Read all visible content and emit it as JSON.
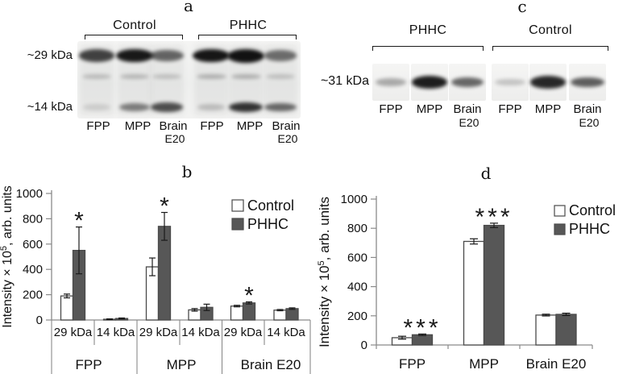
{
  "colors": {
    "control_fill": "#ffffff",
    "phhc_fill": "#575757",
    "bar_stroke": "#4a4a4a",
    "axis": "#8a8a8a",
    "text": "#111111",
    "band": "#121212"
  },
  "blot_a": {
    "letter": "a",
    "groups": [
      {
        "label": "Control"
      },
      {
        "label": "PHHC"
      }
    ],
    "markers": [
      "~29 kDa",
      "~14 kDa"
    ],
    "lanes": [
      {
        "label": "FPP",
        "sub": "",
        "bands": [
          0.78,
          0.2,
          0.12
        ]
      },
      {
        "label": "MPP",
        "sub": "",
        "bands": [
          0.97,
          0.22,
          0.5
        ]
      },
      {
        "label": "Brain",
        "sub": "E20",
        "bands": [
          0.62,
          0.18,
          0.72
        ]
      },
      {
        "label": "FPP",
        "sub": "",
        "bands": [
          0.98,
          0.25,
          0.2
        ]
      },
      {
        "label": "MPP",
        "sub": "",
        "bands": [
          1.0,
          0.25,
          0.85
        ]
      },
      {
        "label": "Brain",
        "sub": "E20",
        "bands": [
          0.58,
          0.18,
          0.6
        ]
      }
    ]
  },
  "blot_c": {
    "letter": "c",
    "groups": [
      {
        "label": "PHHC"
      },
      {
        "label": "Control"
      }
    ],
    "markers": [
      "~31 kDa"
    ],
    "lanes": [
      {
        "label": "FPP",
        "sub": "",
        "bands": [
          0.32
        ]
      },
      {
        "label": "MPP",
        "sub": "",
        "bands": [
          0.95
        ]
      },
      {
        "label": "Brain",
        "sub": "E20",
        "bands": [
          0.62
        ]
      },
      {
        "label": "FPP",
        "sub": "",
        "bands": [
          0.2
        ]
      },
      {
        "label": "MPP",
        "sub": "",
        "bands": [
          0.9
        ]
      },
      {
        "label": "Brain",
        "sub": "E20",
        "bands": [
          0.66
        ]
      }
    ]
  },
  "chart_data": [
    {
      "panel": "b",
      "letter": "b",
      "type": "bar",
      "ylabel_text": "Intensity × 10⁵, arb. units",
      "ylabel": {
        "pre": "Intensity × 10",
        "sup": "5",
        "post": ", arb. units"
      },
      "ylim": [
        0,
        1000
      ],
      "yticks": [
        0,
        200,
        400,
        600,
        800,
        1000
      ],
      "legend": [
        "Control",
        "PHHC"
      ],
      "grid": false,
      "legend_position": "upper-right",
      "groups": [
        {
          "label": "FPP",
          "bars": [
            {
              "sub": "29 kDa",
              "control": 190,
              "control_err": 15,
              "phhc": 550,
              "phhc_err": 185,
              "sig": "*"
            },
            {
              "sub": "14 kDa",
              "control": 6,
              "control_err": 3,
              "phhc": 12,
              "phhc_err": 4,
              "sig": ""
            }
          ]
        },
        {
          "label": "MPP",
          "bars": [
            {
              "sub": "29 kDa",
              "control": 420,
              "control_err": 70,
              "phhc": 740,
              "phhc_err": 110,
              "sig": "*"
            },
            {
              "sub": "14 kDa",
              "control": 80,
              "control_err": 10,
              "phhc": 100,
              "phhc_err": 25,
              "sig": ""
            }
          ]
        },
        {
          "label": "Brain E20",
          "bars": [
            {
              "sub": "29 kDa",
              "control": 110,
              "control_err": 6,
              "phhc": 135,
              "phhc_err": 8,
              "sig": "*"
            },
            {
              "sub": "14 kDa",
              "control": 78,
              "control_err": 5,
              "phhc": 90,
              "phhc_err": 6,
              "sig": ""
            }
          ]
        }
      ]
    },
    {
      "panel": "d",
      "letter": "d",
      "type": "bar",
      "ylabel_text": "Intensity × 10⁵, arb. units",
      "ylabel": {
        "pre": "Intensity × 10",
        "sup": "5",
        "post": ", arb. units"
      },
      "ylim": [
        0,
        1000
      ],
      "yticks": [
        0,
        200,
        400,
        600,
        800,
        1000
      ],
      "legend": [
        "Control",
        "PHHC"
      ],
      "grid": false,
      "legend_position": "upper-right",
      "groups": [
        {
          "label": "FPP",
          "bars": [
            {
              "sub": "",
              "control": 50,
              "control_err": 10,
              "phhc": 70,
              "phhc_err": 5,
              "sig": "***"
            }
          ]
        },
        {
          "label": "MPP",
          "bars": [
            {
              "sub": "",
              "control": 710,
              "control_err": 18,
              "phhc": 820,
              "phhc_err": 15,
              "sig": "***"
            }
          ]
        },
        {
          "label": "Brain E20",
          "bars": [
            {
              "sub": "",
              "control": 205,
              "control_err": 6,
              "phhc": 210,
              "phhc_err": 8,
              "sig": ""
            }
          ]
        }
      ]
    }
  ]
}
